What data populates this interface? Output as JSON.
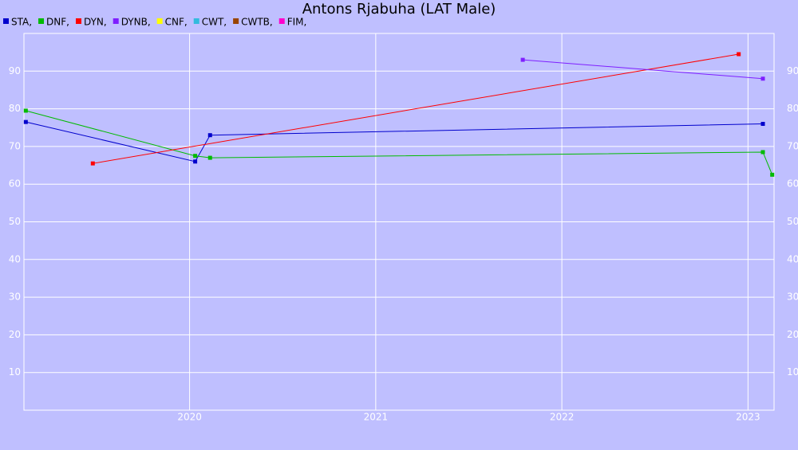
{
  "chart_data": {
    "type": "line",
    "title": "Antons Rjabuha (LAT Male)",
    "xlim": [
      2019.11,
      2023.14
    ],
    "xticks": [
      2020,
      2021,
      2022,
      2023
    ],
    "ylim": [
      0,
      100
    ],
    "yticks": [
      10,
      20,
      30,
      40,
      50,
      60,
      70,
      80,
      90
    ],
    "grid": true,
    "legend": "top-left",
    "series": [
      {
        "name": "STA,",
        "color": "#0000cc",
        "x": [
          2019.12,
          2020.03,
          2020.11,
          2023.08
        ],
        "values": [
          76.5,
          66,
          73,
          76
        ]
      },
      {
        "name": "DNF,",
        "color": "#00bb00",
        "x": [
          2019.12,
          2020.03,
          2020.11,
          2023.08,
          2023.13
        ],
        "values": [
          79.5,
          67.5,
          67,
          68.5,
          62.5
        ]
      },
      {
        "name": "DYN,",
        "color": "#ff0000",
        "x": [
          2019.48,
          2022.95
        ],
        "values": [
          65.5,
          94.5
        ]
      },
      {
        "name": "DYNB,",
        "color": "#7f1fff",
        "x": [
          2021.79,
          2023.08
        ],
        "values": [
          93,
          88
        ]
      },
      {
        "name": "CNF,",
        "color": "#ffff00",
        "x": [],
        "values": []
      },
      {
        "name": "CWT,",
        "color": "#33bbdd",
        "x": [],
        "values": []
      },
      {
        "name": "CWTB,",
        "color": "#994400",
        "x": [],
        "values": []
      },
      {
        "name": "FIM,",
        "color": "#ff00cc",
        "x": [],
        "values": []
      }
    ]
  }
}
